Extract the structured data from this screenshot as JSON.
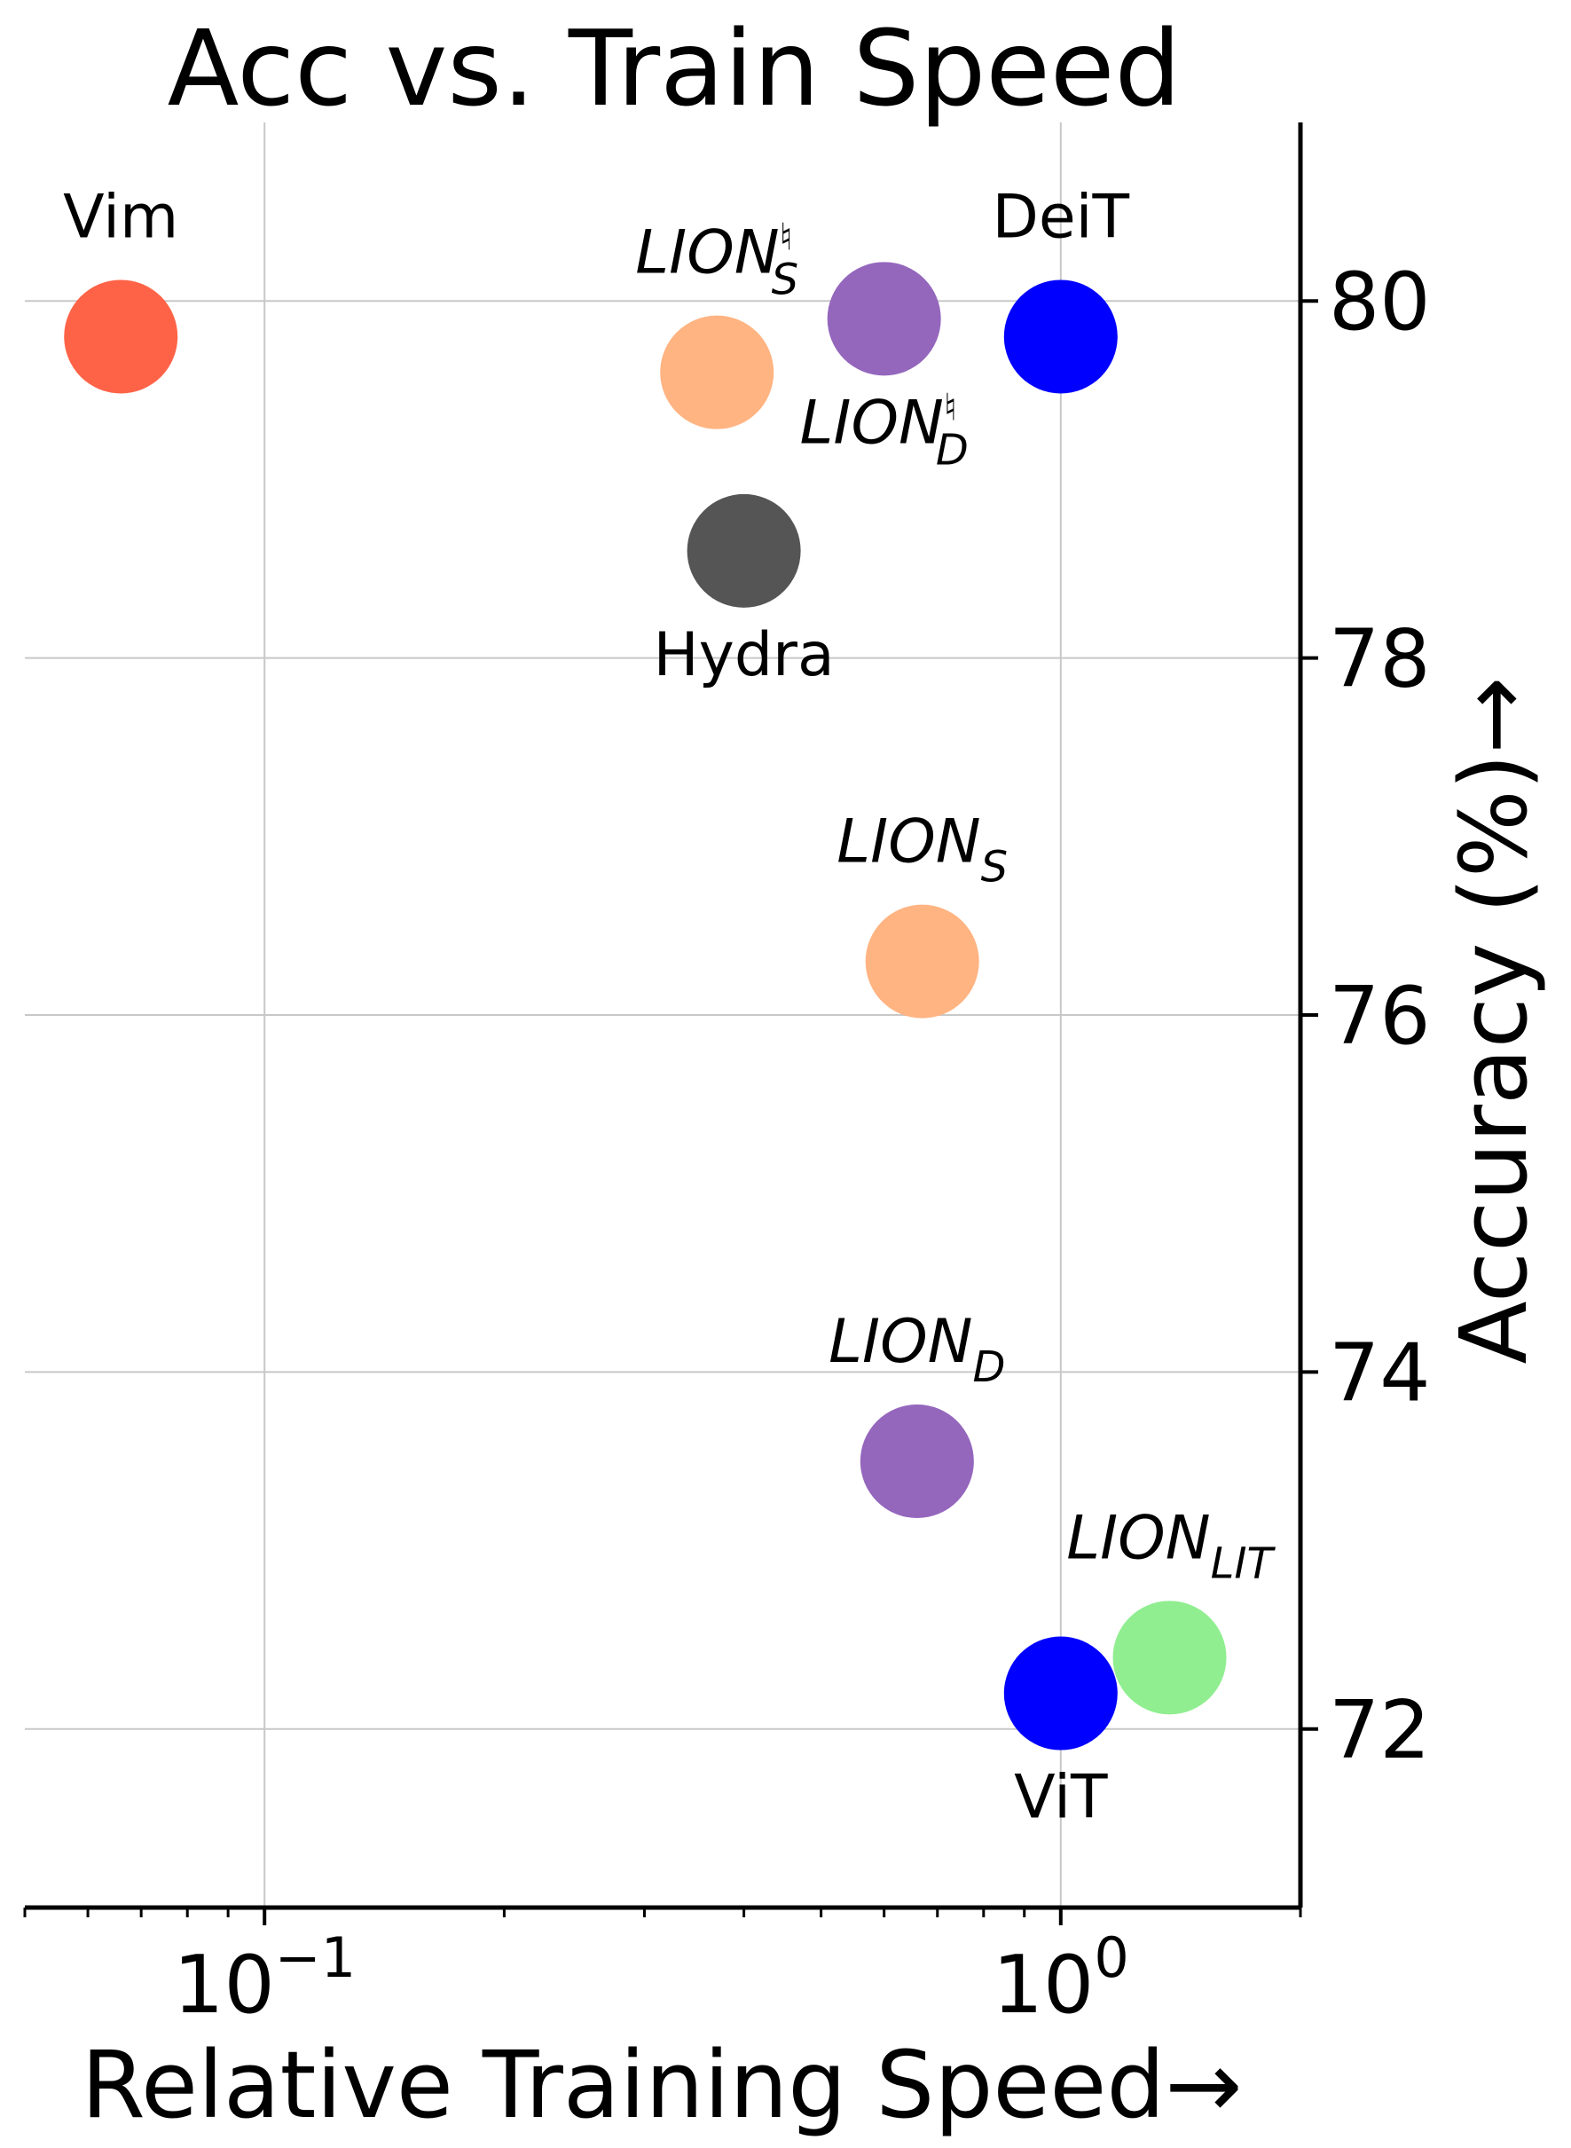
{
  "chart_data": {
    "type": "scatter",
    "title": "Acc vs. Train Speed",
    "xlabel": "Relative Training Speed→",
    "ylabel": "Accuracy (%)→",
    "x_scale": "log",
    "xlim": [
      0.05,
      2.0
    ],
    "ylim": [
      71.0,
      81.0
    ],
    "x_ticks": [
      {
        "value": 0.1,
        "base": "10",
        "exp": "−1"
      },
      {
        "value": 1.0,
        "base": "10",
        "exp": "0"
      }
    ],
    "y_ticks": [
      {
        "value": 72,
        "label": "72"
      },
      {
        "value": 74,
        "label": "74"
      },
      {
        "value": 76,
        "label": "76"
      },
      {
        "value": 78,
        "label": "78"
      },
      {
        "value": 80,
        "label": "80"
      }
    ],
    "grid": true,
    "y_axis_side": "right",
    "points": [
      {
        "label": "Vim",
        "sub": "",
        "sup": "",
        "italic": false,
        "x": 0.066,
        "y": 79.8,
        "color": "#ff6347",
        "label_pos": "above"
      },
      {
        "label": "LION",
        "sub": "S",
        "sup": "♮",
        "italic": true,
        "x": 0.37,
        "y": 79.6,
        "color": "#ffb482",
        "label_pos": "above"
      },
      {
        "label": "LION",
        "sub": "D",
        "sup": "♮",
        "italic": true,
        "x": 0.6,
        "y": 79.9,
        "color": "#9467bd",
        "label_pos": "below"
      },
      {
        "label": "DeiT",
        "sub": "",
        "sup": "",
        "italic": false,
        "x": 1.0,
        "y": 79.8,
        "color": "#0000ff",
        "label_pos": "above"
      },
      {
        "label": "Hydra",
        "sub": "",
        "sup": "",
        "italic": false,
        "x": 0.4,
        "y": 78.6,
        "color": "#555555",
        "label_pos": "below"
      },
      {
        "label": "LION",
        "sub": "S",
        "sup": "",
        "italic": true,
        "x": 0.67,
        "y": 76.3,
        "color": "#ffb482",
        "label_pos": "above"
      },
      {
        "label": "LION",
        "sub": "D",
        "sup": "",
        "italic": true,
        "x": 0.66,
        "y": 73.5,
        "color": "#9467bd",
        "label_pos": "above"
      },
      {
        "label": "LION",
        "sub": "LIT",
        "sup": "",
        "italic": true,
        "x": 1.37,
        "y": 72.4,
        "color": "#90ee90",
        "label_pos": "above"
      },
      {
        "label": "ViT",
        "sub": "",
        "sup": "",
        "italic": false,
        "x": 1.0,
        "y": 72.2,
        "color": "#0000ff",
        "label_pos": "below"
      }
    ]
  }
}
